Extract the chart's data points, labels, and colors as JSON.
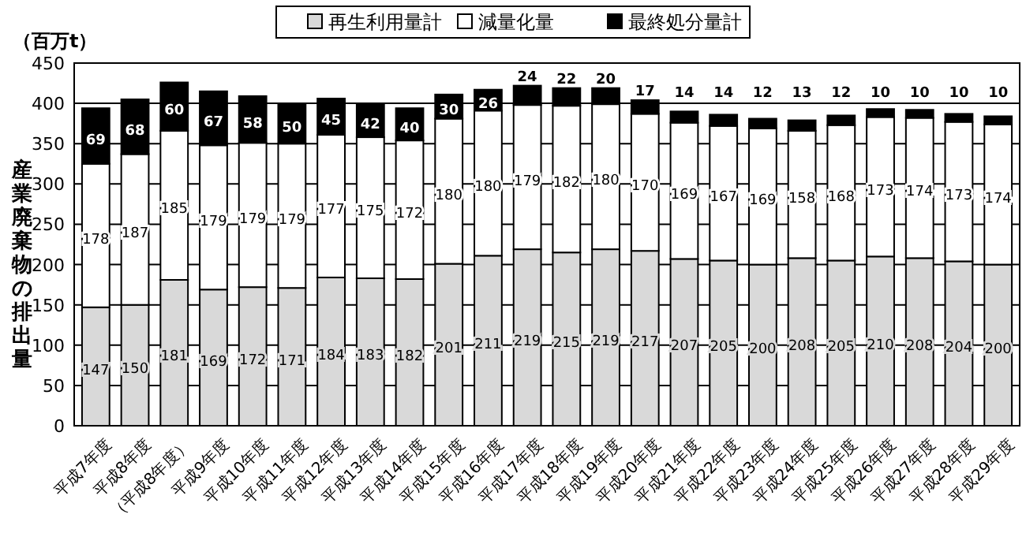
{
  "chart_data": {
    "type": "bar",
    "stacked": true,
    "ylabel": "産業廃棄物の排出量",
    "annotations": [
      "（百万t）"
    ],
    "categories": [
      "平成7年度",
      "平成8年度",
      "（平成8年度）",
      "平成9年度",
      "平成10年度",
      "平成11年度",
      "平成12年度",
      "平成13年度",
      "平成14年度",
      "平成15年度",
      "平成16年度",
      "平成17年度",
      "平成18年度",
      "平成19年度",
      "平成20年度",
      "平成21年度",
      "平成22年度",
      "平成23年度",
      "平成24年度",
      "平成25年度",
      "平成26年度",
      "平成27年度",
      "平成28年度",
      "平成29年度"
    ],
    "series": [
      {
        "name": "再生利用量計",
        "color": "#d9d9d9",
        "values": [
          147,
          150,
          181,
          169,
          172,
          171,
          184,
          183,
          182,
          201,
          211,
          219,
          215,
          219,
          217,
          207,
          205,
          200,
          208,
          205,
          210,
          208,
          204,
          200
        ]
      },
      {
        "name": "減量化量",
        "color": "#ffffff",
        "values": [
          178,
          187,
          185,
          179,
          179,
          179,
          177,
          175,
          172,
          180,
          180,
          179,
          182,
          180,
          170,
          169,
          167,
          169,
          158,
          168,
          173,
          174,
          173,
          174
        ]
      },
      {
        "name": "最終処分量計",
        "color": "#000000",
        "values": [
          69,
          68,
          60,
          67,
          58,
          50,
          45,
          42,
          40,
          30,
          26,
          24,
          22,
          20,
          17,
          14,
          14,
          12,
          13,
          12,
          10,
          10,
          10,
          10
        ]
      }
    ],
    "ylim": [
      0,
      450
    ],
    "yticks": [
      0,
      50,
      100,
      150,
      200,
      250,
      300,
      350,
      400,
      450
    ],
    "grid": "y",
    "legend": "top",
    "data_labels": true
  }
}
